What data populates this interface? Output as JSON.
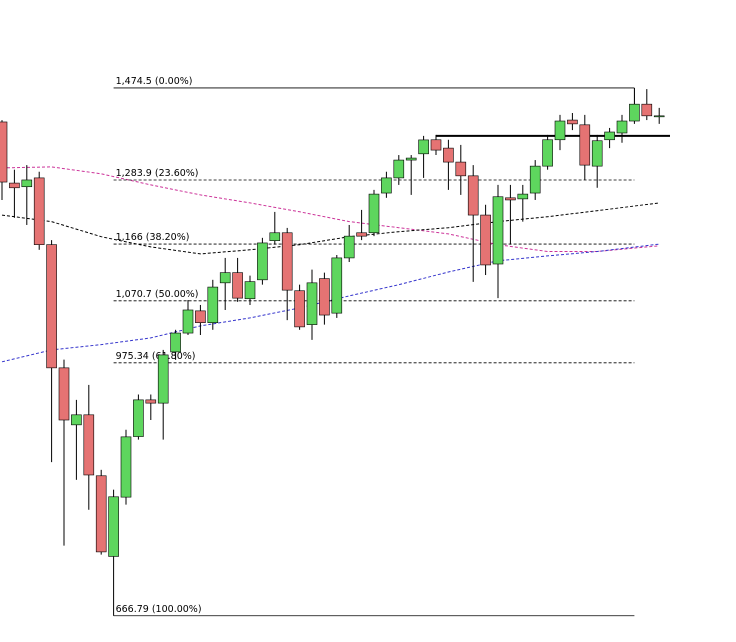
{
  "chart_data": {
    "type": "candlestick",
    "log_scale": true,
    "ylim": [
      641,
      1683
    ],
    "up_color": "#5ed65e",
    "down_color": "#e57373",
    "open": [
      1401,
      1278,
      1271,
      1288,
      1165,
      968,
      888.5,
      902,
      823,
      729,
      797,
      873,
      922.5,
      918,
      991.5,
      1020,
      1054.6,
      1036,
      1100,
      1117,
      1074,
      1105,
      1172,
      1186,
      1087,
      1033,
      1107,
      1051,
      1142,
      1186,
      1186,
      1259,
      1288,
      1323,
      1335.5,
      1364,
      1347,
      1319,
      1292,
      1218,
      1131.6,
      1250,
      1248,
      1259,
      1311,
      1364,
      1405,
      1395,
      1311,
      1364,
      1378,
      1403,
      1439,
      1414
    ],
    "high": [
      1405,
      1304,
      1313,
      1300,
      1173,
      980,
      922.5,
      943.5,
      830.4,
      806,
      882,
      930,
      930,
      994.5,
      1025,
      1072,
      1064,
      1105,
      1142,
      1142,
      1112,
      1177,
      1223.8,
      1194.7,
      1097,
      1122,
      1117,
      1147,
      1200,
      1227.5,
      1265,
      1300,
      1333,
      1333,
      1372,
      1374,
      1364,
      1353.5,
      1313,
      1237,
      1274.5,
      1274.5,
      1274.5,
      1323,
      1374,
      1416,
      1420,
      1416,
      1374,
      1388.5,
      1416,
      1474.5,
      1472,
      1431
    ],
    "low": [
      1246,
      1213,
      1200,
      1156,
      840,
      741,
      818,
      782,
      731,
      666.8,
      788,
      869,
      895,
      869,
      979.7,
      1017,
      1017,
      1025,
      1056,
      1069,
      1064,
      1097,
      1165,
      1040,
      1025,
      1009.6,
      1033,
      1043.5,
      1135,
      1173,
      1180,
      1250,
      1274.5,
      1255.5,
      1288,
      1333,
      1265,
      1255.5,
      1101.6,
      1113,
      1075,
      1165,
      1206,
      1246,
      1304,
      1343,
      1384,
      1284,
      1269,
      1347,
      1358,
      1397,
      1405,
      1397
    ],
    "close": [
      1280,
      1269,
      1284,
      1165,
      968,
      895,
      902,
      824,
      734,
      797.4,
      872.6,
      922.5,
      918,
      987,
      1020,
      1056,
      1036,
      1093,
      1117,
      1075,
      1102,
      1168,
      1186,
      1088,
      1029.5,
      1100,
      1048,
      1142,
      1180,
      1180,
      1257,
      1288,
      1323,
      1327,
      1363.7,
      1343,
      1319,
      1292,
      1218,
      1130,
      1252,
      1246,
      1257,
      1311,
      1364,
      1403,
      1397,
      1313,
      1362,
      1380,
      1403,
      1439,
      1414,
      1414
    ],
    "fib_levels": [
      {
        "value": 1474.5,
        "label": "1,474.5 (0.00%)"
      },
      {
        "value": 1283.9,
        "label": "1,283.9 (23.60%)"
      },
      {
        "value": 1166,
        "label": "1,166 (38.20%)"
      },
      {
        "value": 1070.7,
        "label": "1,070.7 (50.00%)"
      },
      {
        "value": 975.34,
        "label": "975.34 (61.80%)"
      },
      {
        "value": 666.79,
        "label": "666.79 (100.00%)"
      }
    ],
    "support_line": 1372,
    "moving_averages": [
      {
        "color": "#cc3399",
        "x": [
          0,
          4,
          8,
          12,
          16,
          20,
          24,
          28,
          32,
          36,
          40,
          44,
          48,
          53
        ],
        "values": [
          1307.5,
          1309.5,
          1296,
          1274.5,
          1255.5,
          1240.5,
          1224,
          1206,
          1195,
          1184,
          1165,
          1153,
          1153,
          1163
        ]
      },
      {
        "color": "#000000",
        "x": [
          0,
          4,
          8,
          12,
          16,
          20,
          24,
          28,
          32,
          36,
          40,
          44,
          48,
          53
        ],
        "values": [
          1218,
          1206,
          1179,
          1161,
          1149,
          1156,
          1165,
          1179,
          1188,
          1195,
          1206,
          1215,
          1226,
          1240.5
        ]
      },
      {
        "color": "#3333cc",
        "x": [
          0,
          4,
          8,
          12,
          16,
          20,
          24,
          28,
          32,
          36,
          40,
          44,
          48,
          53
        ],
        "values": [
          976.8,
          994.5,
          1002.5,
          1012.6,
          1031,
          1043.5,
          1059.3,
          1078.6,
          1097,
          1118,
          1137,
          1145.5,
          1153,
          1166
        ]
      }
    ]
  }
}
